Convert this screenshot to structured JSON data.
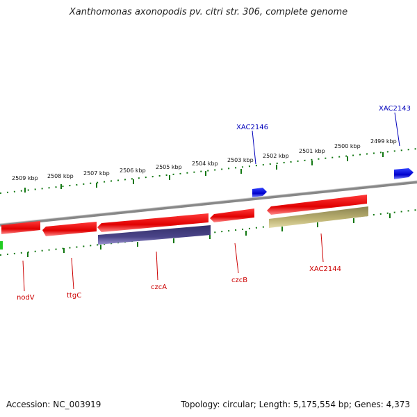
{
  "title": "Xanthomonas axonopodis pv. citri str. 306, complete genome",
  "footer": {
    "accession": "Accession: NC_003919",
    "summary": "Topology: circular; Length: 5,175,554 bp; Genes: 4,373"
  },
  "colors": {
    "forward_gene": "#0000dd",
    "reverse_gene": "#ee0000",
    "label_forward": "#0000bb",
    "label_reverse": "#cc0000",
    "tick": "#117711",
    "backbone": "#888888",
    "band_blue": "#443d7a",
    "band_khaki": "#b5ab6b",
    "accent_green": "#22cc22"
  },
  "scale_labels": [
    "2509 kbp",
    "2508 kbp",
    "2507 kbp",
    "2506 kbp",
    "2505 kbp",
    "2504 kbp",
    "2503 kbp",
    "2502 kbp",
    "2501 kbp",
    "2500 kbp",
    "2499 kbp"
  ],
  "genes": [
    {
      "name": "XAC2143",
      "strand": "forward"
    },
    {
      "name": "XAC2146",
      "strand": "forward"
    },
    {
      "name": "nodV",
      "strand": "reverse"
    },
    {
      "name": "ttgC",
      "strand": "reverse"
    },
    {
      "name": "czcA",
      "strand": "reverse"
    },
    {
      "name": "czcB",
      "strand": "reverse"
    },
    {
      "name": "XAC2144",
      "strand": "reverse"
    }
  ]
}
